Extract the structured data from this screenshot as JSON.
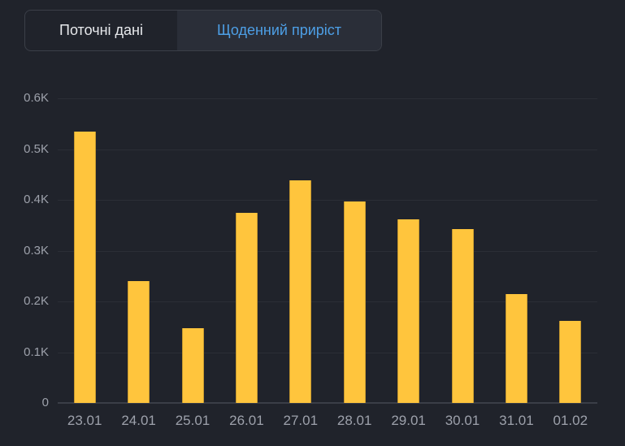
{
  "tabs": [
    {
      "label": "Поточні дані",
      "active": false
    },
    {
      "label": "Щоденний приріст",
      "active": true
    }
  ],
  "colors": {
    "background": "#20232B",
    "bar": "#FFC53D",
    "active_tab_bg": "#2A2E38",
    "active_tab_text": "#4D9FE6",
    "inactive_tab_text": "#E7E9EC",
    "tab_border": "#3B3F48",
    "axis_text": "#9DA1AB",
    "gridline": "#2B2E36",
    "axis_line": "#3A3E47"
  },
  "chart_data": {
    "type": "bar",
    "title": "Щоденний приріст",
    "categories": [
      "23.01",
      "24.01",
      "25.01",
      "26.01",
      "27.01",
      "28.01",
      "29.01",
      "30.01",
      "31.01",
      "01.02"
    ],
    "values": [
      535,
      240,
      147,
      375,
      438,
      396,
      362,
      343,
      215,
      162
    ],
    "xlabel": "",
    "ylabel": "",
    "ylim": [
      0,
      600
    ],
    "grid": true,
    "legend": "none",
    "y_ticks": [
      {
        "label": "0.6K",
        "value": 600
      },
      {
        "label": "0.5K",
        "value": 500
      },
      {
        "label": "0.4K",
        "value": 400
      },
      {
        "label": "0.3K",
        "value": 300
      },
      {
        "label": "0.2K",
        "value": 200
      },
      {
        "label": "0.1K",
        "value": 100
      },
      {
        "label": "0",
        "value": 0
      }
    ]
  }
}
